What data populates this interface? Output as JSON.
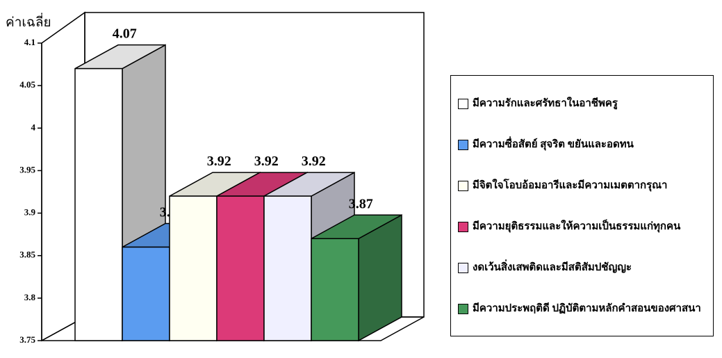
{
  "chart_data": {
    "type": "bar",
    "y_label": "ค่าเฉลี่ย",
    "ylim": [
      3.75,
      4.1
    ],
    "yticks": [
      3.75,
      3.8,
      3.85,
      3.9,
      3.95,
      4,
      4.05,
      4.1
    ],
    "series": [
      {
        "name": "มีความรักและศรัทธาในอาชีพครู",
        "color": "#ffffff",
        "values": [
          4.07
        ]
      },
      {
        "name": "มีความซื่อสัตย์ สุจริต ขยันและอดทน",
        "color": "#5b9cf0",
        "values": [
          3.86
        ]
      },
      {
        "name": "มีจิตใจโอบอ้อมอารีและมีความเมตตากรุณา",
        "color": "#fffff2",
        "values": [
          3.92
        ]
      },
      {
        "name": "มีความยุติธรรมและให้ความเป็นธรรมแก่ทุกคน",
        "color": "#dc3a78",
        "values": [
          3.92
        ]
      },
      {
        "name": "งดเว้นสิ่งเสพติดและมีสติสัมปชัญญะ",
        "color": "#f0f0ff",
        "values": [
          3.92
        ]
      },
      {
        "name": "มีความประพฤติดี ปฏิบัติตามหลักคำสอนของศาสนา",
        "color": "#45995a",
        "values": [
          3.87
        ]
      }
    ]
  }
}
